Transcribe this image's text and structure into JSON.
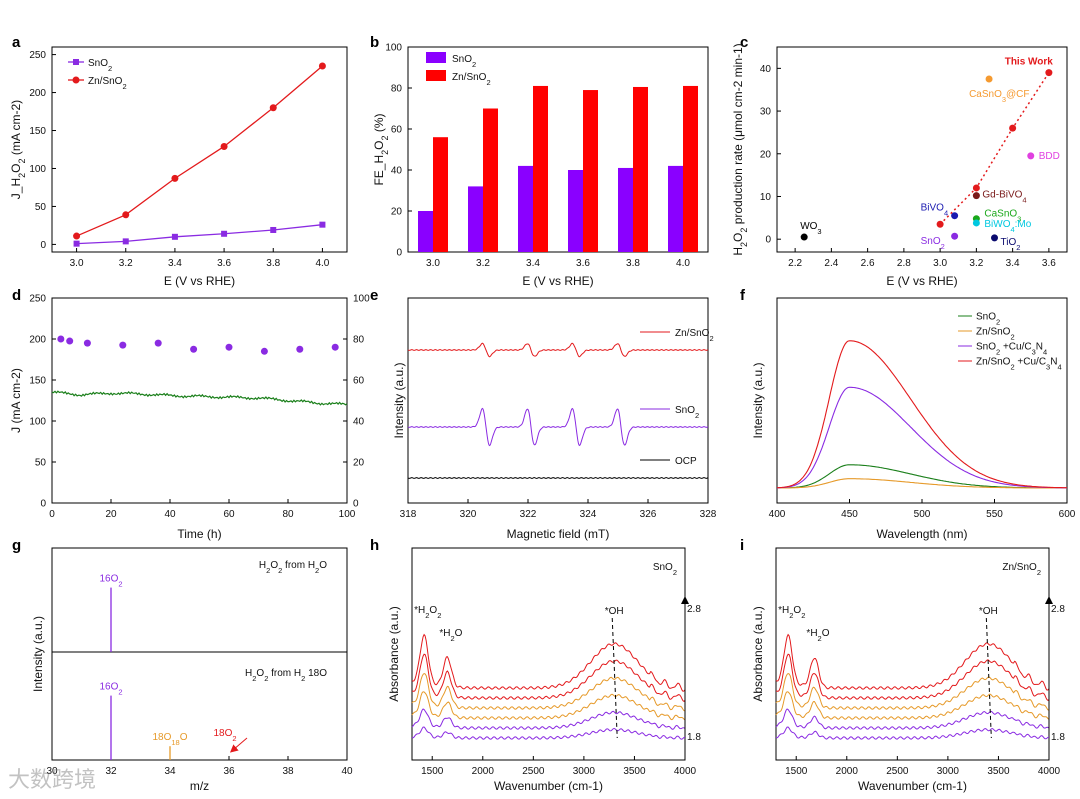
{
  "colors": {
    "purple": "#8a2be2",
    "red": "#ff0000",
    "dred": "#e31a1c",
    "green": "#1a7f1a",
    "orange": "#e69a2a",
    "black": "#000000"
  },
  "watermark": "大数跨境",
  "chart_data": [
    {
      "panel": "a",
      "type": "line",
      "xlabel": "E (V vs RHE)",
      "ylabel": "J_H2O2 (mA cm-2)",
      "xlim": [
        2.9,
        4.1
      ],
      "ylim": [
        -10,
        260
      ],
      "xticks": [
        3.0,
        3.2,
        3.4,
        3.6,
        3.8,
        4.0
      ],
      "yticks": [
        0,
        50,
        100,
        150,
        200,
        250
      ],
      "legend": "top-left",
      "series": [
        {
          "name": "SnO2",
          "color": "#8a2be2",
          "marker": "square",
          "x": [
            3.0,
            3.2,
            3.4,
            3.6,
            3.8,
            4.0
          ],
          "y": [
            1,
            4,
            10,
            14,
            19,
            26
          ]
        },
        {
          "name": "Zn/SnO2",
          "color": "#e31a1c",
          "marker": "circle",
          "x": [
            3.0,
            3.2,
            3.4,
            3.6,
            3.8,
            4.0
          ],
          "y": [
            11,
            39,
            87,
            129,
            180,
            235
          ]
        }
      ]
    },
    {
      "panel": "b",
      "type": "bar",
      "xlabel": "E (V vs RHE)",
      "ylabel": "FE_H2O2 (%)",
      "ylim": [
        0,
        100
      ],
      "yticks": [
        0,
        20,
        40,
        60,
        80,
        100
      ],
      "categories": [
        "3.0",
        "3.2",
        "3.4",
        "3.6",
        "3.8",
        "4.0"
      ],
      "legend": "top-left",
      "series": [
        {
          "name": "SnO2",
          "color": "#8a00ff",
          "values": [
            20,
            32,
            42,
            40,
            41,
            42
          ]
        },
        {
          "name": "Zn/SnO2",
          "color": "#ff0000",
          "values": [
            56,
            70,
            81,
            79,
            80.5,
            81
          ]
        }
      ]
    },
    {
      "panel": "c",
      "type": "scatter",
      "xlabel": "E (V vs RHE)",
      "ylabel": "H2O2 production rate (μmol cm-2 min-1)",
      "xlim": [
        2.1,
        3.7
      ],
      "ylim": [
        -3,
        45
      ],
      "xticks": [
        2.2,
        2.4,
        2.6,
        2.8,
        3.0,
        3.2,
        3.4,
        3.6
      ],
      "yticks": [
        0,
        10,
        20,
        30,
        40
      ],
      "points": [
        {
          "label": "WO3",
          "x": 2.25,
          "y": 0.5,
          "color": "#000000"
        },
        {
          "label": "SnO2",
          "x": 3.08,
          "y": 0.7,
          "color": "#8a2be2"
        },
        {
          "label": "TiO2",
          "x": 3.3,
          "y": 0.3,
          "color": "#0a0a6e"
        },
        {
          "label": "BiVO4",
          "x": 3.08,
          "y": 5.5,
          "color": "#1a1ab0"
        },
        {
          "label": "Gd-BiVO4",
          "x": 3.2,
          "y": 10.2,
          "color": "#7a1a1a"
        },
        {
          "label": "CaSnO3",
          "x": 3.2,
          "y": 4.8,
          "color": "#1aa81a"
        },
        {
          "label": "BiWO4:Mo",
          "x": 3.2,
          "y": 3.8,
          "color": "#00c8e0"
        },
        {
          "label": "BDD",
          "x": 3.5,
          "y": 19.5,
          "color": "#e040e0"
        },
        {
          "label": "CaSnO3@CF",
          "x": 3.27,
          "y": 37.5,
          "color": "#f59a30"
        }
      ],
      "this_work": {
        "label": "This Work",
        "color": "#e31a1c",
        "x": [
          3.0,
          3.2,
          3.4,
          3.6
        ],
        "y": [
          3.5,
          12,
          26,
          39
        ]
      }
    },
    {
      "panel": "d",
      "type": "scatter",
      "xlabel": "Time (h)",
      "ylabel": "J (mA cm-2)",
      "xlim": [
        0,
        100
      ],
      "ylim": [
        0,
        250
      ],
      "xticks": [
        0,
        20,
        40,
        60,
        80,
        100
      ],
      "yticks": [
        0,
        50,
        100,
        150,
        200,
        250
      ],
      "y2lim": [
        0,
        100
      ],
      "y2ticks": [
        0,
        20,
        40,
        60,
        80,
        100
      ],
      "current_color": "#1a7f1a",
      "current_trace": {
        "x": [
          0,
          10,
          20,
          30,
          40,
          50,
          60,
          70,
          80,
          90,
          100
        ],
        "y": [
          135,
          132,
          134,
          133,
          131,
          130,
          129,
          128,
          125,
          122,
          120
        ]
      },
      "fe_color": "#8a2be2",
      "fe_points": {
        "x": [
          3,
          6,
          12,
          24,
          36,
          48,
          60,
          72,
          84,
          96
        ],
        "y": [
          80,
          79,
          78,
          77,
          78,
          75,
          76,
          74,
          75,
          76
        ]
      }
    },
    {
      "panel": "e",
      "type": "line",
      "xlabel": "Magnetic field (mT)",
      "ylabel": "Intensity (a.u.)",
      "xlim": [
        318,
        328
      ],
      "xticks": [
        318,
        320,
        322,
        324,
        326,
        328
      ],
      "peaks_mT": [
        320.6,
        322.1,
        323.6,
        325.1
      ],
      "series": [
        {
          "name": "Zn/SnO2",
          "color": "#e31a1c",
          "amplitude": 0.35
        },
        {
          "name": "SnO2",
          "color": "#8a2be2",
          "amplitude": 1.0
        },
        {
          "name": "OCP",
          "color": "#000000",
          "amplitude": 0.0
        }
      ]
    },
    {
      "panel": "f",
      "type": "line",
      "xlabel": "Wavelength (nm)",
      "ylabel": "Intensity (a.u.)",
      "xlim": [
        400,
        600
      ],
      "xticks": [
        400,
        450,
        500,
        550,
        600
      ],
      "peak_nm": 450,
      "legend": "top-right",
      "series": [
        {
          "name": "SnO2",
          "color": "#1a7f1a",
          "peak_height": 0.15
        },
        {
          "name": "Zn/SnO2",
          "color": "#e69a2a",
          "peak_height": 0.06
        },
        {
          "name": "SnO2 +Cu/C3N4",
          "color": "#8a2be2",
          "peak_height": 0.65
        },
        {
          "name": "Zn/SnO2 +Cu/C3N4",
          "color": "#e31a1c",
          "peak_height": 0.95
        }
      ]
    },
    {
      "panel": "g",
      "type": "bar",
      "xlabel": "m/z",
      "ylabel": "Intensity (a.u.)",
      "xlim": [
        30,
        40
      ],
      "xticks": [
        30,
        32,
        34,
        36,
        38,
        40
      ],
      "subplots": [
        {
          "title": "H2O2 from H2O",
          "lines": [
            {
              "label": "16O2",
              "x": 32,
              "h": 0.7,
              "color": "#8a2be2"
            }
          ]
        },
        {
          "title": "H2O2 from H2 18O",
          "lines": [
            {
              "label": "16O2",
              "x": 32,
              "h": 0.7,
              "color": "#8a2be2"
            },
            {
              "label": "18O18O",
              "x": 34,
              "h": 0.15,
              "color": "#e69a2a"
            },
            {
              "label": "18O2",
              "x": 36,
              "h": 0.0,
              "color": "#e31a1c"
            }
          ]
        }
      ]
    },
    {
      "panel": "h",
      "type": "line",
      "title": "SnO2",
      "xlabel": "Wavenumber (cm-1)",
      "ylabel": "Absorbance (a.u.)",
      "xlim": [
        1300,
        4000
      ],
      "xticks": [
        1500,
        2000,
        2500,
        3000,
        3500,
        4000
      ],
      "potential_range": [
        "2.8",
        "1.8"
      ],
      "annotations": [
        "*H2O2",
        "*H2O",
        "*OH"
      ],
      "peaks_cm": [
        1420,
        1650,
        3300
      ],
      "trace_colors": [
        "#8a2be2",
        "#8a2be2",
        "#e69a2a",
        "#e69a2a",
        "#e31a1c",
        "#e31a1c"
      ]
    },
    {
      "panel": "i",
      "type": "line",
      "title": "Zn/SnO2",
      "xlabel": "Wavenumber (cm-1)",
      "ylabel": "Absorbance (a.u.)",
      "xlim": [
        1300,
        4000
      ],
      "xticks": [
        1500,
        2000,
        2500,
        3000,
        3500,
        4000
      ],
      "potential_range": [
        "2.8",
        "1.8"
      ],
      "annotations": [
        "*H2O2",
        "*H2O",
        "*OH"
      ],
      "peaks_cm": [
        1420,
        1680,
        3400
      ],
      "trace_colors": [
        "#8a2be2",
        "#8a2be2",
        "#e69a2a",
        "#e69a2a",
        "#e31a1c",
        "#e31a1c"
      ]
    }
  ]
}
